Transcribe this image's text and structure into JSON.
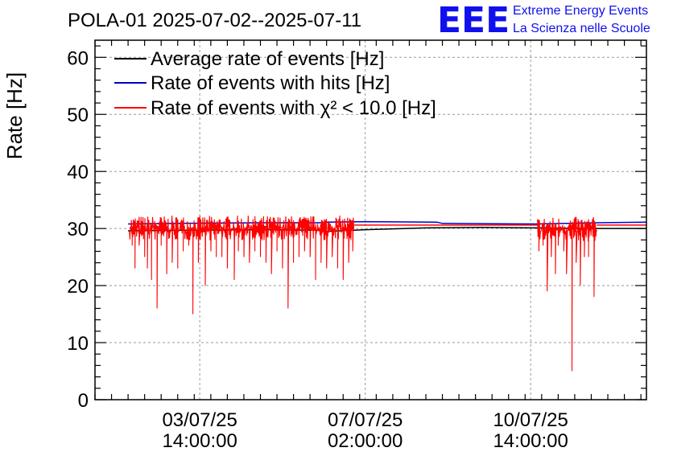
{
  "header": {
    "title": "POLA-01 2025-07-02--2025-07-11",
    "logo_letters": "EEE",
    "logo_line1": "Extreme Energy Events",
    "logo_line2": "La Scienza nelle Scuole"
  },
  "chart_data": {
    "type": "line",
    "title": "POLA-01 2025-07-02--2025-07-11",
    "xlabel": "",
    "ylabel": "Rate [Hz]",
    "ylim": [
      0,
      63
    ],
    "xlim_hours": [
      0,
      200
    ],
    "grid": true,
    "legend_position": "top-left",
    "y_ticks": [
      0,
      10,
      20,
      30,
      40,
      50,
      60
    ],
    "x_ticks": [
      {
        "date": "03/07/25",
        "time": "14:00:00",
        "hour": 38
      },
      {
        "date": "07/07/25",
        "time": "02:00:00",
        "hour": 98
      },
      {
        "date": "10/07/25",
        "time": "14:00:00",
        "hour": 158
      }
    ],
    "series": [
      {
        "name": "Average rate of events [Hz]",
        "color": "#000000",
        "x_hours": [
          12,
          30,
          60,
          82,
          84,
          98,
          120,
          140,
          160,
          182,
          200
        ],
        "values": [
          29.6,
          29.7,
          29.8,
          29.7,
          29.5,
          29.8,
          30.1,
          30.2,
          30.1,
          30.0,
          30.0
        ]
      },
      {
        "name": "Rate of events with hits [Hz]",
        "color": "#0000cc",
        "x_hours": [
          12,
          30,
          60,
          82,
          84,
          98,
          124,
          126,
          160,
          182,
          200
        ],
        "values": [
          30.8,
          30.9,
          31.0,
          31.0,
          31.1,
          31.2,
          31.1,
          30.9,
          30.8,
          31.0,
          31.1
        ]
      },
      {
        "name": "Rate of events with χ² < 10.0 [Hz]",
        "color": "#ff0000",
        "segments": [
          {
            "x_start_hours": 12.5,
            "x_end_hours": 94,
            "baseline": 30.3,
            "noise": 1.0,
            "dips": [
              [
                13.5,
                27
              ],
              [
                14.5,
                23
              ],
              [
                16,
                27
              ],
              [
                18,
                25
              ],
              [
                19,
                23
              ],
              [
                20.5,
                21
              ],
              [
                22.5,
                16
              ],
              [
                24,
                27
              ],
              [
                26,
                22
              ],
              [
                28,
                24
              ],
              [
                30,
                23
              ],
              [
                32,
                26
              ],
              [
                34,
                27
              ],
              [
                35.5,
                15
              ],
              [
                37.5,
                24
              ],
              [
                40,
                20
              ],
              [
                42,
                26
              ],
              [
                44,
                25
              ],
              [
                46,
                25
              ],
              [
                48,
                23
              ],
              [
                50.5,
                21
              ],
              [
                52,
                26
              ],
              [
                54,
                25
              ],
              [
                56,
                24
              ],
              [
                58,
                26
              ],
              [
                60,
                25
              ],
              [
                62,
                24
              ],
              [
                64,
                22
              ],
              [
                66,
                26
              ],
              [
                68,
                23
              ],
              [
                70,
                16
              ],
              [
                72,
                24
              ],
              [
                74,
                25
              ],
              [
                76,
                26
              ],
              [
                78,
                25
              ],
              [
                80,
                21
              ],
              [
                82,
                24
              ],
              [
                84,
                23
              ],
              [
                86,
                25
              ],
              [
                88,
                23
              ],
              [
                90,
                21
              ],
              [
                92,
                24
              ],
              [
                93.5,
                26
              ]
            ]
          },
          {
            "x_start_hours": 160.5,
            "x_end_hours": 182,
            "baseline": 30.1,
            "noise": 1.0,
            "dips": [
              [
                161,
                26
              ],
              [
                162.5,
                27
              ],
              [
                164,
                19
              ],
              [
                165.5,
                25
              ],
              [
                167,
                22
              ],
              [
                168,
                27
              ],
              [
                170,
                26
              ],
              [
                171,
                22
              ],
              [
                173,
                5
              ],
              [
                174.5,
                24
              ],
              [
                176,
                20
              ],
              [
                177.5,
                25
              ],
              [
                179,
                25
              ],
              [
                181,
                18
              ]
            ]
          }
        ],
        "flat_segments": [
          {
            "x_start_hours": 94,
            "x_end_hours": 160.5,
            "value": 30.6
          },
          {
            "x_start_hours": 182,
            "x_end_hours": 200,
            "value": 30.6
          }
        ]
      }
    ]
  }
}
